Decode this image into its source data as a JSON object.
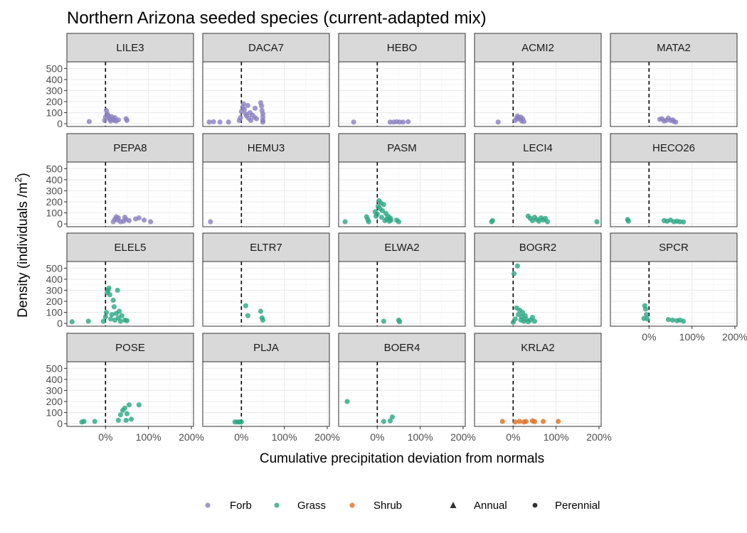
{
  "chart_data": {
    "type": "scatter",
    "title": "Northern Arizona seeded species (current-adapted mix)",
    "xlabel": "Cumulative precipitation deviation from normals",
    "ylabel_main": "Density (individuals /m",
    "ylabel_sup": "2",
    "ylabel_close": ")",
    "x_ticks": [
      0,
      1,
      2
    ],
    "x_tick_labels": [
      "0%",
      "100%",
      "200%"
    ],
    "y_ticks": [
      0,
      100,
      200,
      300,
      400,
      500
    ],
    "y_tick_labels": [
      "0",
      "100",
      "200",
      "300",
      "400",
      "500"
    ],
    "xlim": [
      -0.9,
      2.05
    ],
    "ylim": [
      -25,
      560
    ],
    "reference_line_x": 0,
    "grid": true,
    "legend_position": "bottom",
    "legend": {
      "colors": [
        {
          "label": "Forb",
          "color": "#8a7fc0"
        },
        {
          "label": "Grass",
          "color": "#2aa682"
        },
        {
          "label": "Shrub",
          "color": "#e0711f"
        }
      ],
      "shapes": [
        {
          "label": "Annual",
          "shape": "triangle"
        },
        {
          "label": "Perennial",
          "shape": "circle"
        }
      ]
    },
    "colors": {
      "Forb": "#8a7fc0",
      "Grass": "#2aa682",
      "Shrub": "#e0711f"
    },
    "panels": [
      {
        "name": "LILE3",
        "group": "Forb",
        "points": [
          [
            -0.38,
            20
          ],
          [
            -0.02,
            30
          ],
          [
            0.0,
            60
          ],
          [
            0.02,
            120
          ],
          [
            0.04,
            90
          ],
          [
            0.06,
            75
          ],
          [
            0.08,
            55
          ],
          [
            0.1,
            40
          ],
          [
            0.12,
            25
          ],
          [
            0.14,
            65
          ],
          [
            0.18,
            45
          ],
          [
            0.2,
            30
          ],
          [
            0.22,
            55
          ],
          [
            0.25,
            25
          ],
          [
            0.3,
            35
          ],
          [
            0.48,
            45
          ],
          [
            0.5,
            30
          ]
        ]
      },
      {
        "name": "DACA7",
        "group": "Forb",
        "points": [
          [
            -0.75,
            15
          ],
          [
            -0.65,
            18
          ],
          [
            -0.5,
            15
          ],
          [
            -0.3,
            15
          ],
          [
            -0.05,
            30
          ],
          [
            -0.02,
            55
          ],
          [
            0.0,
            110
          ],
          [
            0.03,
            150
          ],
          [
            0.05,
            180
          ],
          [
            0.07,
            130
          ],
          [
            0.1,
            90
          ],
          [
            0.12,
            70
          ],
          [
            0.15,
            165
          ],
          [
            0.17,
            50
          ],
          [
            0.2,
            100
          ],
          [
            0.22,
            30
          ],
          [
            0.25,
            80
          ],
          [
            0.3,
            60
          ],
          [
            0.32,
            140
          ],
          [
            0.35,
            45
          ],
          [
            0.45,
            190
          ],
          [
            0.47,
            160
          ],
          [
            0.48,
            120
          ],
          [
            0.5,
            90
          ],
          [
            0.5,
            60
          ],
          [
            0.5,
            30
          ],
          [
            0.5,
            15
          ]
        ]
      },
      {
        "name": "HEBO",
        "group": "Forb",
        "points": [
          [
            -0.55,
            15
          ],
          [
            0.3,
            15
          ],
          [
            0.38,
            15
          ],
          [
            0.45,
            18
          ],
          [
            0.52,
            15
          ],
          [
            0.6,
            15
          ],
          [
            0.72,
            18
          ]
        ]
      },
      {
        "name": "ACMI2",
        "group": "Forb",
        "points": [
          [
            -0.35,
            15
          ],
          [
            0.05,
            30
          ],
          [
            0.08,
            50
          ],
          [
            0.1,
            70
          ],
          [
            0.12,
            55
          ],
          [
            0.15,
            40
          ],
          [
            0.18,
            60
          ],
          [
            0.2,
            25
          ],
          [
            0.22,
            45
          ],
          [
            0.25,
            20
          ]
        ]
      },
      {
        "name": "MATA2",
        "group": "Forb",
        "points": [
          [
            0.25,
            40
          ],
          [
            0.3,
            45
          ],
          [
            0.35,
            25
          ],
          [
            0.4,
            30
          ],
          [
            0.45,
            50
          ],
          [
            0.5,
            30
          ],
          [
            0.55,
            35
          ],
          [
            0.58,
            20
          ],
          [
            0.62,
            15
          ]
        ]
      },
      {
        "name": "PEPA8",
        "group": "Forb",
        "points": [
          [
            0.18,
            20
          ],
          [
            0.22,
            45
          ],
          [
            0.25,
            65
          ],
          [
            0.28,
            35
          ],
          [
            0.3,
            55
          ],
          [
            0.35,
            20
          ],
          [
            0.42,
            25
          ],
          [
            0.45,
            60
          ],
          [
            0.48,
            40
          ],
          [
            0.55,
            30
          ],
          [
            0.7,
            45
          ],
          [
            0.78,
            55
          ],
          [
            0.9,
            35
          ],
          [
            1.05,
            20
          ]
        ]
      },
      {
        "name": "HEMU3",
        "group": "Forb",
        "points": [
          [
            -0.72,
            20
          ]
        ]
      },
      {
        "name": "PASM",
        "group": "Grass",
        "points": [
          [
            -0.75,
            20
          ],
          [
            -0.25,
            65
          ],
          [
            -0.22,
            40
          ],
          [
            -0.2,
            20
          ],
          [
            -0.05,
            110
          ],
          [
            -0.03,
            70
          ],
          [
            0.0,
            90
          ],
          [
            0.02,
            160
          ],
          [
            0.04,
            210
          ],
          [
            0.06,
            140
          ],
          [
            0.08,
            190
          ],
          [
            0.1,
            60
          ],
          [
            0.12,
            120
          ],
          [
            0.15,
            175
          ],
          [
            0.18,
            30
          ],
          [
            0.2,
            95
          ],
          [
            0.22,
            45
          ],
          [
            0.25,
            70
          ],
          [
            0.28,
            25
          ],
          [
            0.3,
            55
          ],
          [
            0.32,
            35
          ],
          [
            0.45,
            35
          ],
          [
            0.5,
            20
          ]
        ]
      },
      {
        "name": "LECI4",
        "group": "Grass",
        "points": [
          [
            -0.5,
            20
          ],
          [
            -0.48,
            30
          ],
          [
            0.35,
            70
          ],
          [
            0.4,
            50
          ],
          [
            0.45,
            30
          ],
          [
            0.5,
            60
          ],
          [
            0.55,
            40
          ],
          [
            0.6,
            25
          ],
          [
            0.65,
            55
          ],
          [
            0.7,
            35
          ],
          [
            0.75,
            50
          ],
          [
            0.8,
            20
          ],
          [
            1.95,
            20
          ]
        ]
      },
      {
        "name": "HECO26",
        "group": "Grass",
        "points": [
          [
            -0.5,
            40
          ],
          [
            -0.48,
            25
          ],
          [
            0.35,
            30
          ],
          [
            0.42,
            25
          ],
          [
            0.5,
            35
          ],
          [
            0.58,
            20
          ],
          [
            0.65,
            25
          ],
          [
            0.72,
            20
          ],
          [
            0.8,
            18
          ]
        ]
      },
      {
        "name": "ELEL5",
        "group": "Grass",
        "points": [
          [
            -0.78,
            15
          ],
          [
            -0.4,
            20
          ],
          [
            -0.05,
            20
          ],
          [
            0.0,
            60
          ],
          [
            0.02,
            100
          ],
          [
            0.04,
            280
          ],
          [
            0.06,
            300
          ],
          [
            0.08,
            320
          ],
          [
            0.1,
            260
          ],
          [
            0.12,
            40
          ],
          [
            0.15,
            80
          ],
          [
            0.18,
            210
          ],
          [
            0.2,
            150
          ],
          [
            0.22,
            30
          ],
          [
            0.25,
            90
          ],
          [
            0.28,
            300
          ],
          [
            0.3,
            50
          ],
          [
            0.32,
            110
          ],
          [
            0.35,
            20
          ],
          [
            0.38,
            70
          ],
          [
            0.45,
            30
          ],
          [
            0.5,
            25
          ]
        ]
      },
      {
        "name": "ELTR7",
        "group": "Grass",
        "points": [
          [
            0.1,
            160
          ],
          [
            0.15,
            70
          ],
          [
            0.45,
            110
          ],
          [
            0.48,
            50
          ],
          [
            0.5,
            30
          ]
        ]
      },
      {
        "name": "ELWA2",
        "group": "Grass",
        "points": [
          [
            0.15,
            20
          ],
          [
            0.5,
            30
          ],
          [
            0.52,
            15
          ]
        ]
      },
      {
        "name": "BOGR2",
        "group": "Grass",
        "points": [
          [
            0.0,
            10
          ],
          [
            0.02,
            450
          ],
          [
            0.05,
            40
          ],
          [
            0.08,
            140
          ],
          [
            0.1,
            520
          ],
          [
            0.12,
            80
          ],
          [
            0.15,
            120
          ],
          [
            0.18,
            30
          ],
          [
            0.2,
            60
          ],
          [
            0.22,
            100
          ],
          [
            0.25,
            20
          ],
          [
            0.28,
            70
          ],
          [
            0.3,
            40
          ],
          [
            0.35,
            15
          ],
          [
            0.4,
            30
          ],
          [
            0.45,
            55
          ],
          [
            0.5,
            20
          ]
        ]
      },
      {
        "name": "SPCR",
        "group": "Grass",
        "points": [
          [
            -0.12,
            45
          ],
          [
            -0.1,
            160
          ],
          [
            -0.08,
            130
          ],
          [
            -0.06,
            80
          ],
          [
            -0.04,
            40
          ],
          [
            0.45,
            35
          ],
          [
            0.55,
            30
          ],
          [
            0.65,
            25
          ],
          [
            0.72,
            30
          ],
          [
            0.8,
            20
          ]
        ]
      },
      {
        "name": "POSE",
        "group": "Grass",
        "points": [
          [
            -0.55,
            15
          ],
          [
            -0.5,
            20
          ],
          [
            -0.25,
            20
          ],
          [
            0.3,
            30
          ],
          [
            0.35,
            80
          ],
          [
            0.4,
            120
          ],
          [
            0.45,
            140
          ],
          [
            0.48,
            30
          ],
          [
            0.5,
            90
          ],
          [
            0.55,
            170
          ],
          [
            0.6,
            40
          ],
          [
            0.78,
            170
          ]
        ]
      },
      {
        "name": "PLJA",
        "group": "Grass",
        "points": [
          [
            -0.15,
            15
          ],
          [
            -0.1,
            15
          ],
          [
            -0.05,
            15
          ],
          [
            0.0,
            15
          ]
        ]
      },
      {
        "name": "BOER4",
        "group": "Grass",
        "points": [
          [
            -0.7,
            200
          ],
          [
            0.15,
            20
          ],
          [
            0.3,
            25
          ],
          [
            0.35,
            60
          ]
        ]
      },
      {
        "name": "KRLA2",
        "group": "Shrub",
        "points": [
          [
            -0.25,
            20
          ],
          [
            0.05,
            15
          ],
          [
            0.15,
            20
          ],
          [
            0.25,
            15
          ],
          [
            0.3,
            20
          ],
          [
            0.45,
            25
          ],
          [
            0.5,
            18
          ],
          [
            0.7,
            20
          ],
          [
            1.05,
            20
          ]
        ]
      }
    ]
  }
}
